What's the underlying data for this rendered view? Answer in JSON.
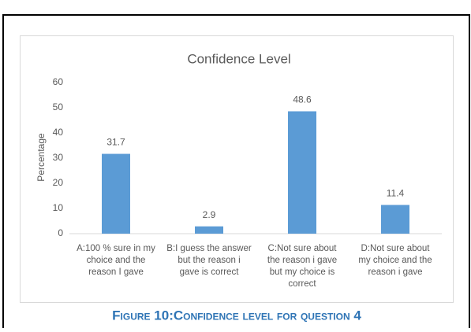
{
  "chart_data": {
    "type": "bar",
    "title": "Confidence Level",
    "y_label": "Percentage",
    "categories": [
      "A:100 % sure in my\nchoice and the\nreason I gave",
      "B:I guess the answer\nbut the reason i\ngave is correct",
      "C:Not sure about\nthe reason i gave\nbut my choice  is\ncorrect",
      "D:Not sure about\nmy choice and the\nreason i gave"
    ],
    "values": [
      31.7,
      2.9,
      48.6,
      11.4
    ],
    "color": "#5b9bd5",
    "ylim": [
      0,
      60
    ],
    "yticks": [
      0,
      10,
      20,
      30,
      40,
      50,
      60
    ],
    "grid": false,
    "caption": "Figure 10:Confidence level for question 4"
  }
}
